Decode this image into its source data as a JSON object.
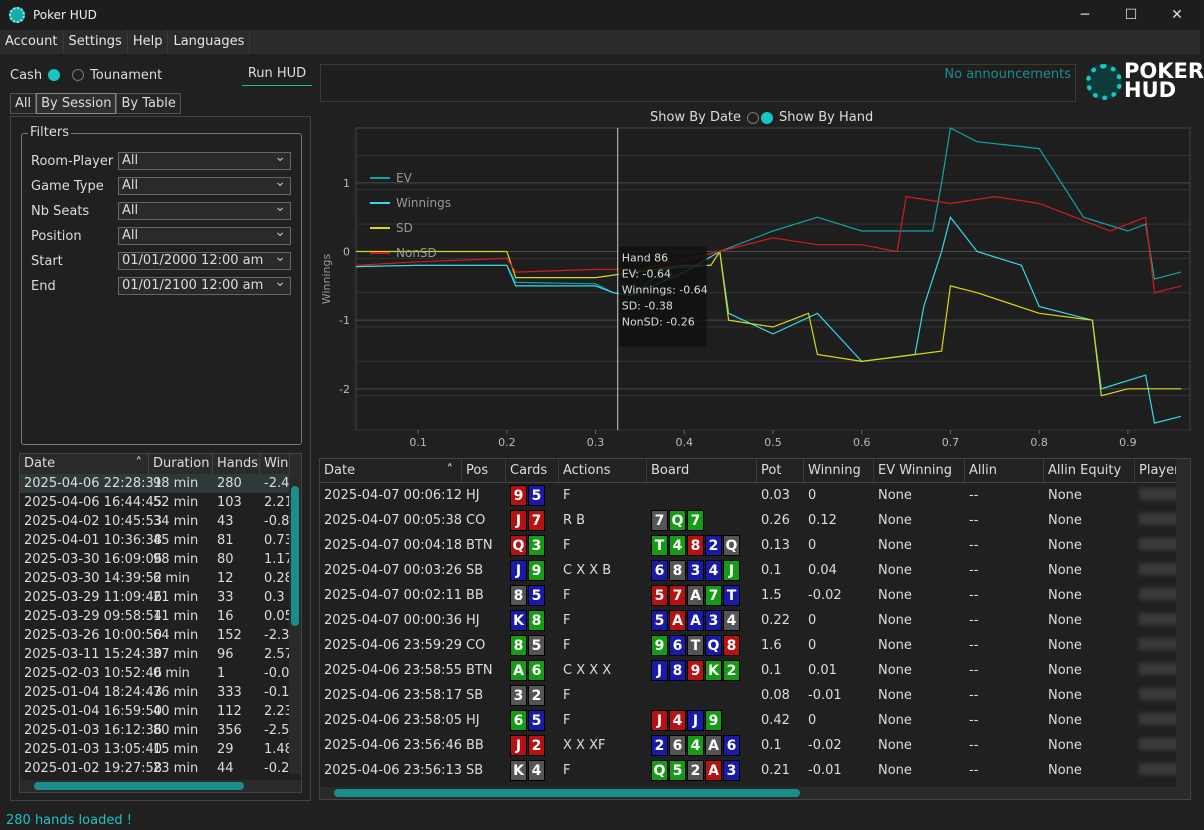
{
  "app": {
    "title": "Poker HUD"
  },
  "menu": [
    "Account",
    "Settings",
    "Help",
    "Languages"
  ],
  "mode": {
    "cash": "Cash",
    "tournament": "Tounament",
    "run_hud": "Run HUD"
  },
  "tabs": [
    "All",
    "By Session",
    "By Table"
  ],
  "filters": {
    "legend": "Filters",
    "rows": [
      {
        "label": "Room-Player",
        "value": "All"
      },
      {
        "label": "Game Type",
        "value": "All"
      },
      {
        "label": "Nb Seats",
        "value": "All"
      },
      {
        "label": "Position",
        "value": "All"
      },
      {
        "label": "Start",
        "value": "01/01/2000 12:00 am"
      },
      {
        "label": "End",
        "value": "01/01/2100 12:00 am"
      }
    ]
  },
  "sessions": {
    "headers": [
      "Date",
      "Duration",
      "Hands",
      "Win"
    ],
    "rows": [
      [
        "2025-04-06 22:28:31",
        "98 min",
        "280",
        "-2.4"
      ],
      [
        "2025-04-06 16:44:45",
        "52 min",
        "103",
        "2.21"
      ],
      [
        "2025-04-02 10:45:53",
        "34 min",
        "43",
        "-0.8"
      ],
      [
        "2025-04-01 10:36:38",
        "45 min",
        "81",
        "0.73"
      ],
      [
        "2025-03-30 16:09:06",
        "98 min",
        "80",
        "1.17"
      ],
      [
        "2025-03-30 14:39:52",
        "6 min",
        "12",
        "0.28"
      ],
      [
        "2025-03-29 11:09:46",
        "21 min",
        "33",
        "0.3"
      ],
      [
        "2025-03-29 09:58:54",
        "11 min",
        "16",
        "0.05"
      ],
      [
        "2025-03-26 10:00:50",
        "64 min",
        "152",
        "-2.3"
      ],
      [
        "2025-03-11 15:24:30",
        "37 min",
        "96",
        "2.57"
      ],
      [
        "2025-02-03 10:52:46",
        "0 min",
        "1",
        "-0.0"
      ],
      [
        "2025-01-04 18:24:43",
        "76 min",
        "333",
        "-0.1"
      ],
      [
        "2025-01-04 16:59:50",
        "40 min",
        "112",
        "2.23"
      ],
      [
        "2025-01-03 16:12:36",
        "80 min",
        "356",
        "-2.5"
      ],
      [
        "2025-01-03 13:05:40",
        "15 min",
        "29",
        "1.48"
      ],
      [
        "2025-01-02 19:27:58",
        "23 min",
        "44",
        "-0.2"
      ]
    ]
  },
  "announcement": "No announcements",
  "logo": {
    "line1": "POKER",
    "line2": "HUD"
  },
  "show_by": {
    "date": "Show By Date",
    "hand": "Show By Hand"
  },
  "chart_data": {
    "type": "line",
    "ylabel": "Winnings",
    "xlim": [
      0.03,
      0.97
    ],
    "ylim": [
      -2.6,
      1.8
    ],
    "xticks": [
      "0.1",
      "0.2",
      "0.3",
      "0.4",
      "0.5",
      "0.6",
      "0.7",
      "0.8",
      "0.9"
    ],
    "yticks": [
      "1",
      "0",
      "-1",
      "-2"
    ],
    "legend_position": "top-left",
    "series": [
      {
        "name": "EV",
        "color": "#14a3a3",
        "points": [
          [
            0.03,
            -0.22
          ],
          [
            0.1,
            -0.2
          ],
          [
            0.2,
            -0.2
          ],
          [
            0.21,
            -0.45
          ],
          [
            0.3,
            -0.47
          ],
          [
            0.32,
            -0.6
          ],
          [
            0.34,
            -0.64
          ],
          [
            0.38,
            -0.25
          ],
          [
            0.43,
            -0.2
          ],
          [
            0.44,
            0.0
          ],
          [
            0.5,
            0.3
          ],
          [
            0.55,
            0.5
          ],
          [
            0.6,
            0.3
          ],
          [
            0.68,
            0.3
          ],
          [
            0.69,
            1.0
          ],
          [
            0.7,
            1.8
          ],
          [
            0.73,
            1.6
          ],
          [
            0.8,
            1.5
          ],
          [
            0.85,
            0.5
          ],
          [
            0.9,
            0.3
          ],
          [
            0.92,
            0.4
          ],
          [
            0.93,
            -0.4
          ],
          [
            0.96,
            -0.3
          ]
        ]
      },
      {
        "name": "Winnings",
        "color": "#38d8e8",
        "points": [
          [
            0.03,
            -0.22
          ],
          [
            0.1,
            -0.2
          ],
          [
            0.2,
            -0.2
          ],
          [
            0.21,
            -0.5
          ],
          [
            0.3,
            -0.5
          ],
          [
            0.32,
            -0.6
          ],
          [
            0.34,
            -0.64
          ],
          [
            0.4,
            -0.3
          ],
          [
            0.44,
            0.0
          ],
          [
            0.45,
            -0.9
          ],
          [
            0.5,
            -1.2
          ],
          [
            0.55,
            -0.9
          ],
          [
            0.6,
            -1.6
          ],
          [
            0.66,
            -1.5
          ],
          [
            0.67,
            -0.8
          ],
          [
            0.69,
            0.0
          ],
          [
            0.7,
            0.5
          ],
          [
            0.73,
            0.0
          ],
          [
            0.78,
            -0.2
          ],
          [
            0.8,
            -0.8
          ],
          [
            0.86,
            -1.0
          ],
          [
            0.87,
            -2.0
          ],
          [
            0.92,
            -1.8
          ],
          [
            0.93,
            -2.5
          ],
          [
            0.96,
            -2.4
          ]
        ]
      },
      {
        "name": "SD",
        "color": "#d8d81a",
        "points": [
          [
            0.03,
            0.0
          ],
          [
            0.2,
            0.0
          ],
          [
            0.21,
            -0.38
          ],
          [
            0.3,
            -0.38
          ],
          [
            0.4,
            -0.2
          ],
          [
            0.43,
            -0.2
          ],
          [
            0.44,
            0.0
          ],
          [
            0.45,
            -1.0
          ],
          [
            0.5,
            -1.1
          ],
          [
            0.54,
            -0.9
          ],
          [
            0.55,
            -1.5
          ],
          [
            0.6,
            -1.6
          ],
          [
            0.69,
            -1.45
          ],
          [
            0.7,
            -0.5
          ],
          [
            0.73,
            -0.6
          ],
          [
            0.8,
            -0.9
          ],
          [
            0.86,
            -1.0
          ],
          [
            0.87,
            -2.1
          ],
          [
            0.9,
            -2.0
          ],
          [
            0.96,
            -2.0
          ]
        ]
      },
      {
        "name": "NonSD",
        "color": "#d01c1c",
        "points": [
          [
            0.03,
            -0.2
          ],
          [
            0.1,
            -0.15
          ],
          [
            0.2,
            -0.1
          ],
          [
            0.21,
            -0.3
          ],
          [
            0.3,
            -0.26
          ],
          [
            0.35,
            -0.26
          ],
          [
            0.44,
            0.0
          ],
          [
            0.5,
            0.2
          ],
          [
            0.55,
            0.1
          ],
          [
            0.6,
            0.1
          ],
          [
            0.64,
            0.0
          ],
          [
            0.65,
            0.8
          ],
          [
            0.7,
            0.7
          ],
          [
            0.75,
            0.8
          ],
          [
            0.8,
            0.7
          ],
          [
            0.84,
            0.5
          ],
          [
            0.88,
            0.3
          ],
          [
            0.92,
            0.5
          ],
          [
            0.93,
            -0.6
          ],
          [
            0.96,
            -0.5
          ]
        ]
      }
    ],
    "cursor_x": 0.325,
    "tooltip": [
      "Hand 86",
      "EV: -0.64",
      "Winnings: -0.64",
      "SD: -0.38",
      "NonSD: -0.26"
    ]
  },
  "hands": {
    "headers": [
      "Date",
      "Pos",
      "Cards",
      "Actions",
      "Board",
      "Pot",
      "Winning",
      "EV Winning",
      "Allin",
      "Allin Equity",
      "Player"
    ],
    "rows": [
      {
        "date": "2025-04-07 00:06:12",
        "pos": "HJ",
        "cards": [
          [
            "9",
            "h"
          ],
          [
            "5",
            "d"
          ]
        ],
        "actions": "F",
        "board": [],
        "pot": "0.03",
        "win": "0",
        "ev": "None",
        "allin": "--",
        "eq": "None"
      },
      {
        "date": "2025-04-07 00:05:38",
        "pos": "CO",
        "cards": [
          [
            "J",
            "h"
          ],
          [
            "7",
            "h"
          ]
        ],
        "actions": "R B",
        "board": [
          [
            "7",
            "s"
          ],
          [
            "Q",
            "c"
          ],
          [
            "7",
            "c"
          ]
        ],
        "pot": "0.26",
        "win": "0.12",
        "ev": "None",
        "allin": "--",
        "eq": "None"
      },
      {
        "date": "2025-04-07 00:04:18",
        "pos": "BTN",
        "cards": [
          [
            "Q",
            "h"
          ],
          [
            "3",
            "c"
          ]
        ],
        "actions": "F",
        "board": [
          [
            "T",
            "c"
          ],
          [
            "4",
            "c"
          ],
          [
            "8",
            "h"
          ],
          [
            "2",
            "d"
          ],
          [
            "Q",
            "s"
          ]
        ],
        "pot": "0.13",
        "win": "0",
        "ev": "None",
        "allin": "--",
        "eq": "None"
      },
      {
        "date": "2025-04-07 00:03:26",
        "pos": "SB",
        "cards": [
          [
            "J",
            "d"
          ],
          [
            "9",
            "c"
          ]
        ],
        "actions": "C X X B",
        "board": [
          [
            "6",
            "d"
          ],
          [
            "8",
            "s"
          ],
          [
            "3",
            "d"
          ],
          [
            "4",
            "d"
          ],
          [
            "J",
            "c"
          ]
        ],
        "pot": "0.1",
        "win": "0.04",
        "ev": "None",
        "allin": "--",
        "eq": "None"
      },
      {
        "date": "2025-04-07 00:02:11",
        "pos": "BB",
        "cards": [
          [
            "8",
            "s"
          ],
          [
            "5",
            "d"
          ]
        ],
        "actions": "F",
        "board": [
          [
            "5",
            "h"
          ],
          [
            "7",
            "h"
          ],
          [
            "A",
            "s"
          ],
          [
            "7",
            "c"
          ],
          [
            "T",
            "d"
          ]
        ],
        "pot": "1.5",
        "win": "-0.02",
        "ev": "None",
        "allin": "--",
        "eq": "None"
      },
      {
        "date": "2025-04-07 00:00:36",
        "pos": "HJ",
        "cards": [
          [
            "K",
            "d"
          ],
          [
            "8",
            "c"
          ]
        ],
        "actions": "F",
        "board": [
          [
            "5",
            "d"
          ],
          [
            "A",
            "h"
          ],
          [
            "A",
            "d"
          ],
          [
            "3",
            "d"
          ],
          [
            "4",
            "s"
          ]
        ],
        "pot": "0.22",
        "win": "0",
        "ev": "None",
        "allin": "--",
        "eq": "None"
      },
      {
        "date": "2025-04-06 23:59:29",
        "pos": "CO",
        "cards": [
          [
            "8",
            "c"
          ],
          [
            "5",
            "s"
          ]
        ],
        "actions": "F",
        "board": [
          [
            "9",
            "c"
          ],
          [
            "6",
            "d"
          ],
          [
            "T",
            "s"
          ],
          [
            "Q",
            "d"
          ],
          [
            "8",
            "h"
          ]
        ],
        "pot": "1.6",
        "win": "0",
        "ev": "None",
        "allin": "--",
        "eq": "None"
      },
      {
        "date": "2025-04-06 23:58:55",
        "pos": "BTN",
        "cards": [
          [
            "A",
            "c"
          ],
          [
            "6",
            "c"
          ]
        ],
        "actions": "C X X X",
        "board": [
          [
            "J",
            "d"
          ],
          [
            "8",
            "d"
          ],
          [
            "9",
            "h"
          ],
          [
            "K",
            "c"
          ],
          [
            "2",
            "c"
          ]
        ],
        "pot": "0.1",
        "win": "0.01",
        "ev": "None",
        "allin": "--",
        "eq": "None"
      },
      {
        "date": "2025-04-06 23:58:17",
        "pos": "SB",
        "cards": [
          [
            "3",
            "s"
          ],
          [
            "2",
            "s"
          ]
        ],
        "actions": "F",
        "board": [],
        "pot": "0.08",
        "win": "-0.01",
        "ev": "None",
        "allin": "--",
        "eq": "None"
      },
      {
        "date": "2025-04-06 23:58:05",
        "pos": "HJ",
        "cards": [
          [
            "6",
            "c"
          ],
          [
            "5",
            "d"
          ]
        ],
        "actions": "F",
        "board": [
          [
            "J",
            "h"
          ],
          [
            "4",
            "h"
          ],
          [
            "J",
            "d"
          ],
          [
            "9",
            "c"
          ]
        ],
        "pot": "0.42",
        "win": "0",
        "ev": "None",
        "allin": "--",
        "eq": "None"
      },
      {
        "date": "2025-04-06 23:56:46",
        "pos": "BB",
        "cards": [
          [
            "J",
            "h"
          ],
          [
            "2",
            "h"
          ]
        ],
        "actions": "X X XF",
        "board": [
          [
            "2",
            "d"
          ],
          [
            "6",
            "s"
          ],
          [
            "4",
            "c"
          ],
          [
            "A",
            "s"
          ],
          [
            "6",
            "d"
          ]
        ],
        "pot": "0.1",
        "win": "-0.02",
        "ev": "None",
        "allin": "--",
        "eq": "None"
      },
      {
        "date": "2025-04-06 23:56:13",
        "pos": "SB",
        "cards": [
          [
            "K",
            "s"
          ],
          [
            "4",
            "s"
          ]
        ],
        "actions": "F",
        "board": [
          [
            "Q",
            "c"
          ],
          [
            "5",
            "c"
          ],
          [
            "2",
            "s"
          ],
          [
            "A",
            "h"
          ],
          [
            "3",
            "d"
          ]
        ],
        "pot": "0.21",
        "win": "-0.01",
        "ev": "None",
        "allin": "--",
        "eq": "None"
      }
    ]
  },
  "status": "280 hands loaded !"
}
